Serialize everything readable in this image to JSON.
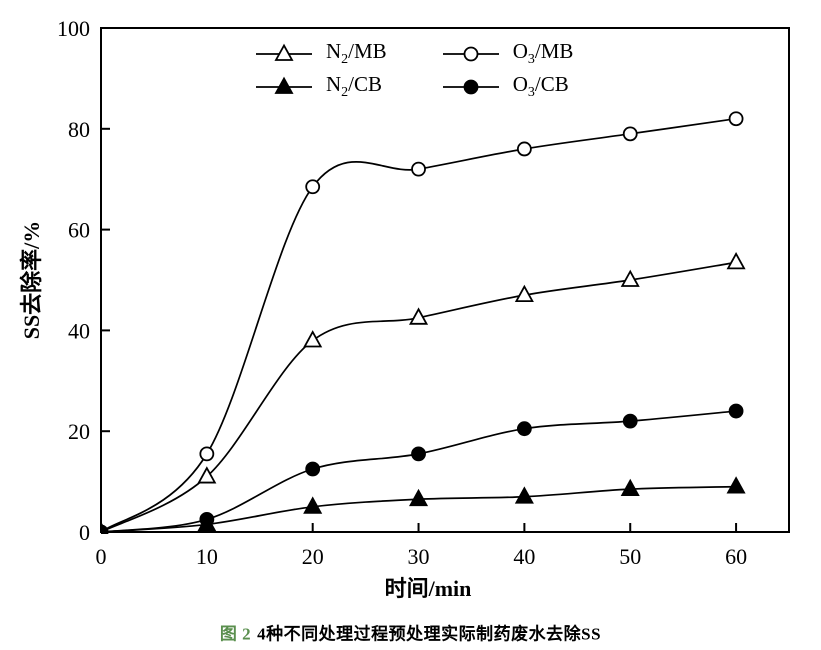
{
  "figure": {
    "caption_prefix": "图 2",
    "caption_text": "4种不同处理过程预处理实际制药废水去除SS",
    "caption_prefix_color": "#5a8f4e"
  },
  "chart_data": {
    "type": "line",
    "title": "",
    "xlabel": "时间/min",
    "ylabel": "SS去除率/%",
    "xlim": [
      0,
      65
    ],
    "ylim": [
      0,
      100
    ],
    "x_ticks": [
      0,
      10,
      20,
      30,
      40,
      50,
      60
    ],
    "y_ticks": [
      0,
      20,
      40,
      60,
      80,
      100
    ],
    "grid": false,
    "legend_position": "top-inside",
    "line_color": "#000000",
    "x": [
      0,
      10,
      20,
      30,
      40,
      50,
      60
    ],
    "series": [
      {
        "name": "N2/MB",
        "label": {
          "prefix": "N",
          "sub": "2",
          "suffix": "/MB"
        },
        "marker": "triangle-open",
        "values": [
          0,
          11,
          38,
          42.5,
          47,
          50,
          53.5
        ]
      },
      {
        "name": "N2/CB",
        "label": {
          "prefix": "N",
          "sub": "2",
          "suffix": "/CB"
        },
        "marker": "triangle-filled",
        "values": [
          0,
          1.5,
          5,
          6.5,
          7,
          8.5,
          9
        ]
      },
      {
        "name": "O3/MB",
        "label": {
          "prefix": "O",
          "sub": "3",
          "suffix": "/MB"
        },
        "marker": "circle-open",
        "values": [
          0,
          15.5,
          68.5,
          72,
          76,
          79,
          82
        ]
      },
      {
        "name": "O3/CB",
        "label": {
          "prefix": "O",
          "sub": "3",
          "suffix": "/CB"
        },
        "marker": "circle-filled",
        "values": [
          0,
          2.5,
          12.5,
          15.5,
          20.5,
          22,
          24
        ]
      }
    ],
    "legend_order": [
      0,
      2,
      1,
      3
    ]
  }
}
